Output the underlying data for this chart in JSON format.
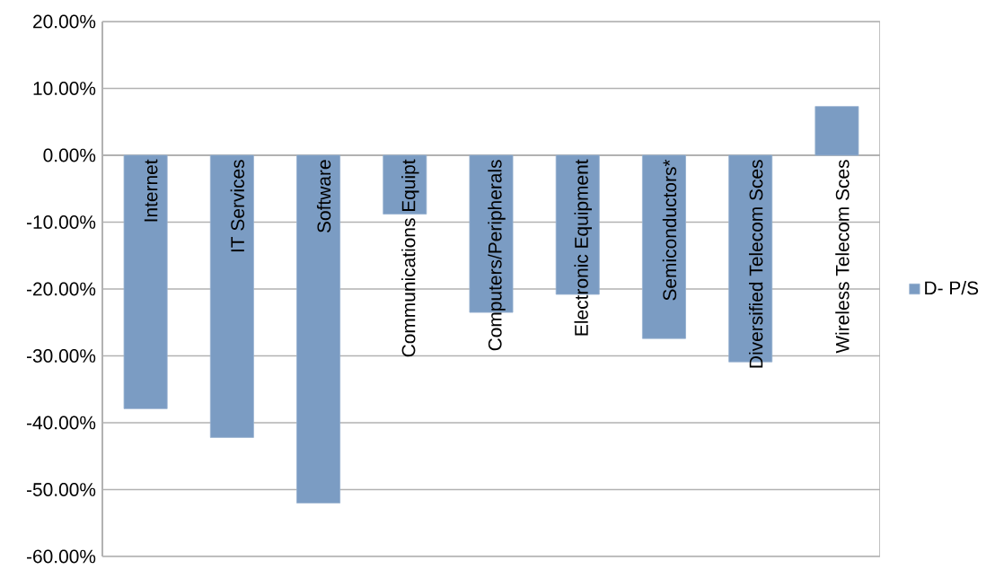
{
  "chart_data": {
    "type": "bar",
    "categories": [
      "Internet",
      "IT Services",
      "Software",
      "Communications Equipt",
      "Computers/Peripherals",
      "Electronic Equipment",
      "Semiconductors*",
      "Diversified Telecom Sces",
      "Wireless Telecom Sces"
    ],
    "series": [
      {
        "name": "D- P/S",
        "color": "#7b9cc3",
        "values": [
          -37.9,
          -42.2,
          -52.0,
          -8.8,
          -23.5,
          -20.8,
          -27.4,
          -30.9,
          7.3
        ]
      }
    ],
    "ylim": [
      -60,
      20
    ],
    "yticks": [
      {
        "value": -60,
        "label": "-60.00%"
      },
      {
        "value": -50,
        "label": "-50.00%"
      },
      {
        "value": -40,
        "label": "-40.00%"
      },
      {
        "value": -30,
        "label": "-30.00%"
      },
      {
        "value": -20,
        "label": "-20.00%"
      },
      {
        "value": -10,
        "label": "-10.00%"
      },
      {
        "value": 0,
        "label": "0.00%"
      },
      {
        "value": 10,
        "label": "10.00%"
      },
      {
        "value": 20,
        "label": "20.00%"
      }
    ],
    "grid": "y",
    "legend": "right"
  }
}
